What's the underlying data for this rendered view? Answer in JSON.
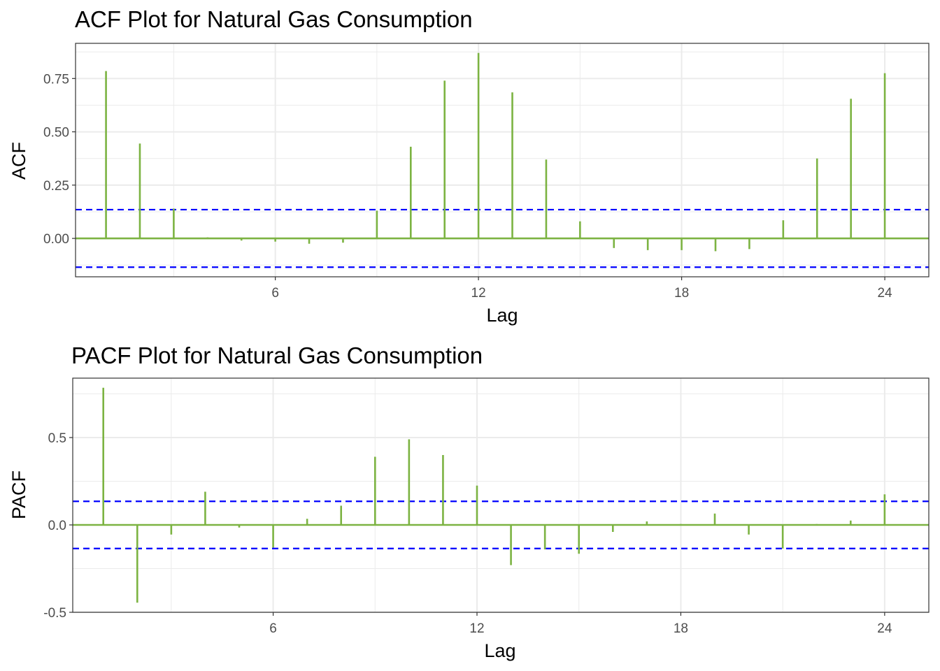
{
  "colors": {
    "bar": "#7cb342",
    "ci": "#0000ff",
    "grid": "#ebebeb",
    "panel_border": "#333333",
    "tick_text": "#4d4d4d"
  },
  "chart_data": [
    {
      "type": "bar",
      "title": "ACF Plot for Natural Gas Consumption",
      "xlabel": "Lag",
      "ylabel": "ACF",
      "x": [
        1,
        2,
        3,
        4,
        5,
        6,
        7,
        8,
        9,
        10,
        11,
        12,
        13,
        14,
        15,
        16,
        17,
        18,
        19,
        20,
        21,
        22,
        23,
        24
      ],
      "values": [
        0.785,
        0.445,
        0.14,
        0.005,
        -0.01,
        -0.015,
        -0.025,
        -0.02,
        0.13,
        0.43,
        0.74,
        0.87,
        0.685,
        0.37,
        0.08,
        -0.045,
        -0.055,
        -0.055,
        -0.06,
        -0.05,
        0.085,
        0.375,
        0.655,
        0.775
      ],
      "ci": 0.135,
      "xlim": [
        0.1,
        25.3
      ],
      "ylim": [
        -0.18,
        0.915
      ],
      "xticks": [
        6,
        12,
        18,
        24
      ],
      "yticks": [
        0,
        0.25,
        0.5,
        0.75
      ],
      "ytick_labels": [
        "0.00",
        "0.25",
        "0.50",
        "0.75"
      ],
      "grid": true
    },
    {
      "type": "bar",
      "title": "PACF Plot for Natural Gas Consumption",
      "xlabel": "Lag",
      "ylabel": "PACF",
      "x": [
        1,
        2,
        3,
        4,
        5,
        6,
        7,
        8,
        9,
        10,
        11,
        12,
        13,
        14,
        15,
        16,
        17,
        18,
        19,
        20,
        21,
        22,
        23,
        24
      ],
      "values": [
        0.785,
        -0.445,
        -0.055,
        0.19,
        -0.015,
        -0.13,
        0.035,
        0.11,
        0.39,
        0.49,
        0.4,
        0.225,
        -0.23,
        -0.14,
        -0.165,
        -0.04,
        0.02,
        0.005,
        0.065,
        -0.055,
        -0.135,
        0.005,
        0.025,
        0.175
      ],
      "ci": 0.135,
      "xlim": [
        0.1,
        25.3
      ],
      "ylim": [
        -0.5,
        0.84
      ],
      "xticks": [
        6,
        12,
        18,
        24
      ],
      "yticks": [
        -0.5,
        0,
        0.5
      ],
      "ytick_labels": [
        "-0.5",
        "0.0",
        "0.5"
      ],
      "grid": true
    }
  ]
}
